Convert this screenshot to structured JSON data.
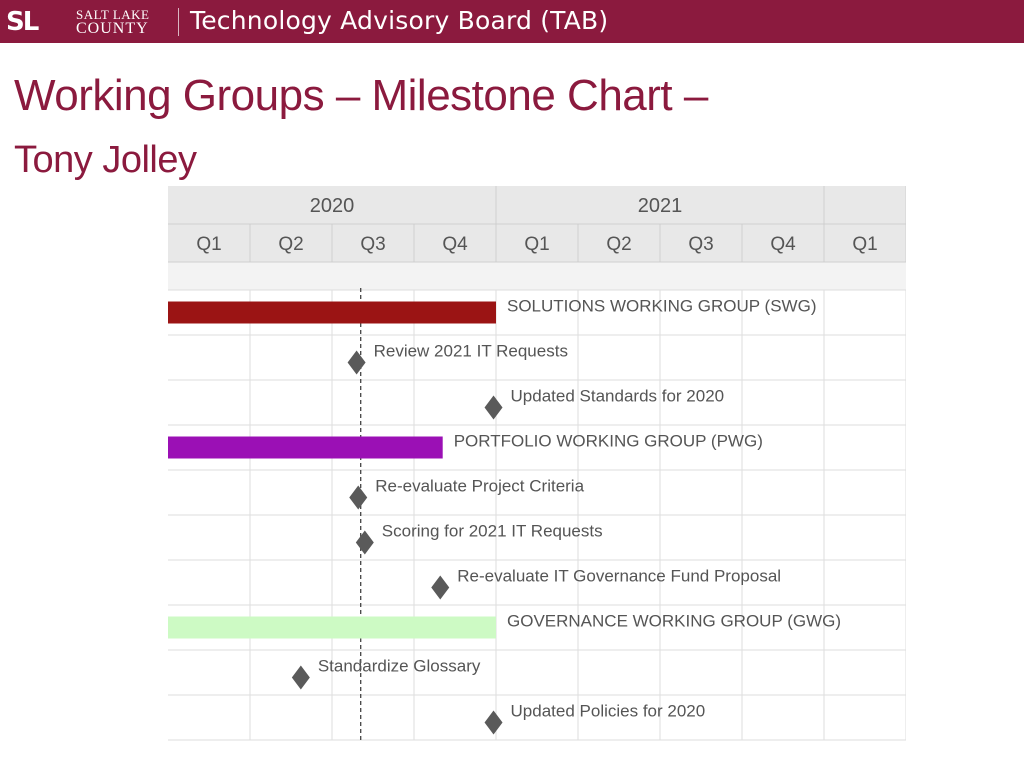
{
  "header": {
    "logo_mark": "SL",
    "logo_line1": "SALT LAKE",
    "logo_line2": "COUNTY",
    "title": "Technology Advisory Board (TAB)"
  },
  "slide": {
    "title": "Working Groups – Milestone Chart –",
    "subtitle": "Tony Jolley"
  },
  "colors": {
    "banner": "#8b1a3e",
    "title": "#8b1a3e",
    "header_bg": "#e8e8e8",
    "grid": "#dddddd",
    "milestone": "#5a5a5a",
    "today_line": "#444444"
  },
  "chart_data": {
    "type": "gantt",
    "years": [
      {
        "label": "2020",
        "start": 0,
        "span": 4
      },
      {
        "label": "2021",
        "start": 4,
        "span": 4
      },
      {
        "label": "",
        "start": 8,
        "span": 1
      }
    ],
    "quarters": [
      "Q1",
      "Q2",
      "Q3",
      "Q4",
      "Q1",
      "Q2",
      "Q3",
      "Q4",
      "Q1"
    ],
    "today_quarter": 2.35,
    "rows": [
      {
        "kind": "bar",
        "label": "SOLUTIONS WORKING GROUP (SWG)",
        "start": 0,
        "end": 4,
        "color": "#9b1414"
      },
      {
        "kind": "milestone",
        "label": "Review 2021 IT Requests",
        "at": 2.3
      },
      {
        "kind": "milestone",
        "label": "Updated Standards for 2020",
        "at": 3.97
      },
      {
        "kind": "bar",
        "label": "PORTFOLIO WORKING GROUP (PWG)",
        "start": 0,
        "end": 3.35,
        "color": "#9b10b5"
      },
      {
        "kind": "milestone",
        "label": "Re-evaluate Project Criteria",
        "at": 2.32
      },
      {
        "kind": "milestone",
        "label": "Scoring for 2021 IT Requests",
        "at": 2.4
      },
      {
        "kind": "milestone",
        "label": "Re-evaluate IT Governance Fund Proposal",
        "at": 3.32
      },
      {
        "kind": "bar",
        "label": "GOVERNANCE WORKING GROUP (GWG)",
        "start": 0,
        "end": 4,
        "color": "#cdfac4"
      },
      {
        "kind": "milestone",
        "label": "Standardize Glossary",
        "at": 1.62
      },
      {
        "kind": "milestone",
        "label": "Updated Policies for 2020",
        "at": 3.97
      }
    ]
  }
}
